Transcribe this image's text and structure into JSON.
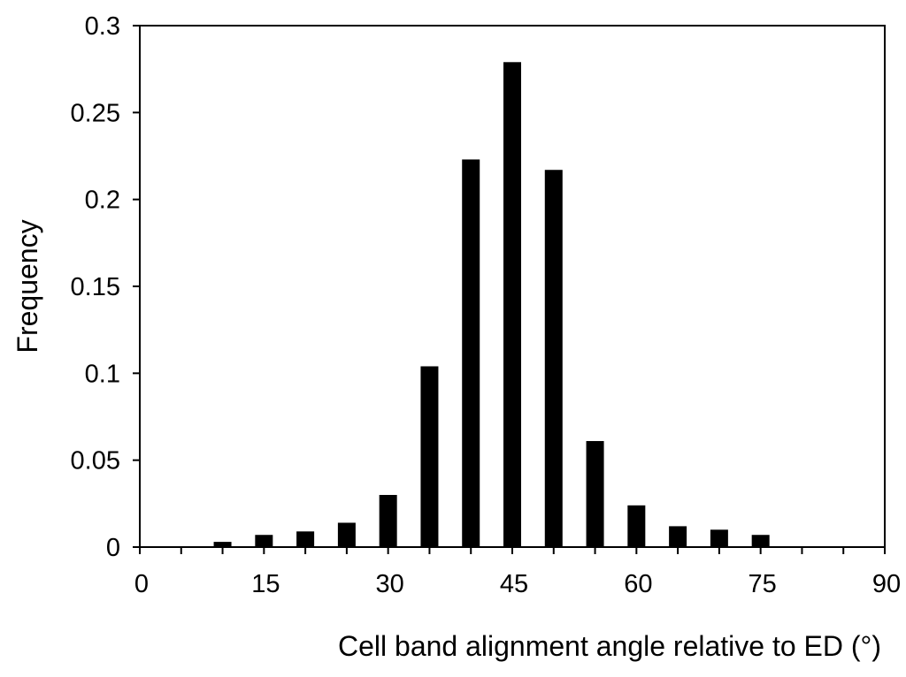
{
  "chart_data": {
    "type": "bar",
    "xlabel": "Cell band alignment angle relative to ED (°)",
    "ylabel": "Frequency",
    "xlim": [
      0,
      90
    ],
    "ylim": [
      0,
      0.3
    ],
    "x_ticks": [
      0,
      15,
      30,
      45,
      60,
      75,
      90
    ],
    "x_tick_labels": [
      "0",
      "15",
      "30",
      "45",
      "60",
      "75",
      "90"
    ],
    "x_minor_step": 5,
    "y_ticks": [
      0,
      0.05,
      0.1,
      0.15,
      0.2,
      0.25,
      0.3
    ],
    "y_tick_labels": [
      "0",
      "0.05",
      "0.1",
      "0.15",
      "0.2",
      "0.25",
      "0.3"
    ],
    "grid": false,
    "bar_color": "#000000",
    "x": [
      10,
      15,
      20,
      25,
      30,
      35,
      40,
      45,
      50,
      55,
      60,
      65,
      70,
      75
    ],
    "values": [
      0.003,
      0.007,
      0.009,
      0.014,
      0.03,
      0.104,
      0.223,
      0.279,
      0.217,
      0.061,
      0.024,
      0.012,
      0.01,
      0.007
    ]
  }
}
